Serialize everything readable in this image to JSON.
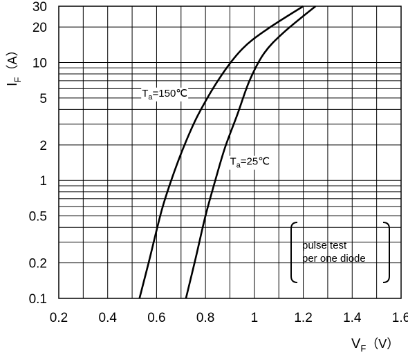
{
  "chart_data": {
    "type": "line",
    "xlabel": {
      "main": "V",
      "sub": "F",
      "unit": "（V）"
    },
    "ylabel": {
      "main": "I",
      "sub": "F",
      "unit": "（A）"
    },
    "xlim": [
      0.2,
      1.6
    ],
    "ylim": [
      0.1,
      30
    ],
    "yscale": "log",
    "grid": true,
    "x_ticks": [
      "0.2",
      "0.4",
      "0.6",
      "0.8",
      "1",
      "1.2",
      "1.4",
      "1.6"
    ],
    "y_ticks": [
      {
        "value": 0.1,
        "label": "0.1"
      },
      {
        "value": 0.2,
        "label": "0.2"
      },
      {
        "value": 0.5,
        "label": "0.5"
      },
      {
        "value": 1,
        "label": "1"
      },
      {
        "value": 2,
        "label": "2"
      },
      {
        "value": 5,
        "label": "5"
      },
      {
        "value": 10,
        "label": "10"
      },
      {
        "value": 20,
        "label": "20"
      },
      {
        "value": 30,
        "label": "30"
      }
    ],
    "series": [
      {
        "name": "Ta=150℃",
        "label": {
          "main": "T",
          "sub": "a",
          "rest": "=150℃"
        },
        "x": [
          0.53,
          0.57,
          0.62,
          0.66,
          0.71,
          0.77,
          0.86,
          0.95,
          1.05,
          1.2
        ],
        "y": [
          0.1,
          0.21,
          0.55,
          1.0,
          1.9,
          3.6,
          7.5,
          13,
          19,
          30
        ]
      },
      {
        "name": "Ta=25℃",
        "label": {
          "main": "T",
          "sub": "a",
          "rest": "=25℃"
        },
        "x": [
          0.72,
          0.76,
          0.8,
          0.84,
          0.88,
          0.93,
          0.98,
          1.04,
          1.12,
          1.25
        ],
        "y": [
          0.1,
          0.22,
          0.5,
          1.0,
          1.9,
          3.6,
          7.0,
          12,
          18,
          30
        ]
      }
    ],
    "annotation": [
      "pulse test",
      "per one diode"
    ]
  }
}
